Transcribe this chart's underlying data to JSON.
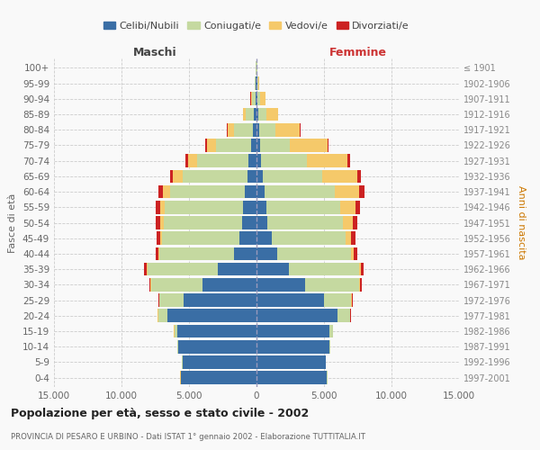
{
  "age_groups": [
    "0-4",
    "5-9",
    "10-14",
    "15-19",
    "20-24",
    "25-29",
    "30-34",
    "35-39",
    "40-44",
    "45-49",
    "50-54",
    "55-59",
    "60-64",
    "65-69",
    "70-74",
    "75-79",
    "80-84",
    "85-89",
    "90-94",
    "95-99",
    "100+"
  ],
  "birth_years": [
    "1997-2001",
    "1992-1996",
    "1987-1991",
    "1982-1986",
    "1977-1981",
    "1972-1976",
    "1967-1971",
    "1962-1966",
    "1957-1961",
    "1952-1956",
    "1947-1951",
    "1942-1946",
    "1937-1941",
    "1932-1936",
    "1927-1931",
    "1922-1926",
    "1917-1921",
    "1912-1916",
    "1907-1911",
    "1902-1906",
    "≤ 1901"
  ],
  "maschi": {
    "celibi": [
      5600,
      5500,
      5800,
      5900,
      6600,
      5400,
      4000,
      2900,
      1700,
      1300,
      1100,
      1000,
      900,
      700,
      600,
      400,
      300,
      200,
      100,
      50,
      30
    ],
    "coniugati": [
      30,
      30,
      50,
      200,
      700,
      1800,
      3800,
      5200,
      5500,
      5700,
      5800,
      5800,
      5500,
      4800,
      3800,
      2600,
      1400,
      600,
      250,
      80,
      20
    ],
    "vedovi": [
      5,
      5,
      5,
      10,
      20,
      30,
      40,
      60,
      80,
      150,
      250,
      350,
      550,
      700,
      700,
      700,
      450,
      200,
      80,
      20,
      5
    ],
    "divorziati": [
      5,
      5,
      5,
      15,
      30,
      60,
      100,
      150,
      200,
      250,
      300,
      350,
      350,
      200,
      150,
      70,
      30,
      20,
      10,
      5,
      2
    ]
  },
  "femmine": {
    "nubili": [
      5200,
      5100,
      5400,
      5400,
      6000,
      5000,
      3600,
      2400,
      1500,
      1100,
      800,
      700,
      600,
      450,
      350,
      250,
      200,
      150,
      80,
      50,
      30
    ],
    "coniugate": [
      35,
      40,
      80,
      250,
      900,
      2000,
      4000,
      5200,
      5500,
      5500,
      5600,
      5500,
      5200,
      4400,
      3400,
      2200,
      1200,
      550,
      200,
      60,
      15
    ],
    "vedove": [
      5,
      5,
      5,
      10,
      20,
      40,
      60,
      100,
      200,
      400,
      700,
      1100,
      1800,
      2600,
      3000,
      2800,
      1800,
      900,
      400,
      80,
      10
    ],
    "divorziate": [
      5,
      5,
      5,
      20,
      50,
      100,
      150,
      200,
      250,
      300,
      350,
      380,
      380,
      250,
      180,
      100,
      50,
      20,
      10,
      5,
      2
    ]
  },
  "colors": {
    "celibi": "#3a6ea5",
    "coniugati": "#c5d9a0",
    "vedovi": "#f5c96a",
    "divorziati": "#cc2222"
  },
  "title": "Popolazione per età, sesso e stato civile - 2002",
  "subtitle": "PROVINCIA DI PESARO E URBINO - Dati ISTAT 1° gennaio 2002 - Elaborazione TUTTITALIA.IT",
  "xlabel_left": "Maschi",
  "xlabel_right": "Femmine",
  "ylabel_left": "Fasce di età",
  "ylabel_right": "Anni di nascita",
  "xlim": 15000,
  "background_color": "#f9f9f9",
  "grid_color": "#cccccc",
  "legend_labels": [
    "Celibi/Nubili",
    "Coniugati/e",
    "Vedovi/e",
    "Divorziati/e"
  ]
}
